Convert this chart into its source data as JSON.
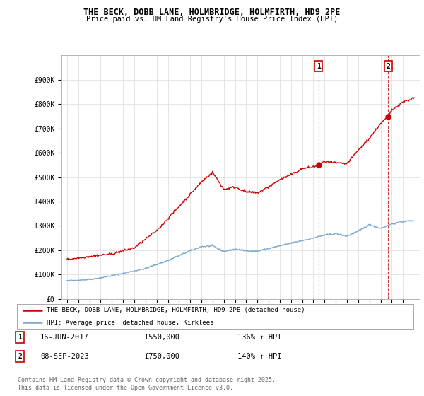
{
  "title": "THE BECK, DOBB LANE, HOLMBRIDGE, HOLMFIRTH, HD9 2PE",
  "subtitle": "Price paid vs. HM Land Registry's House Price Index (HPI)",
  "legend_line1": "THE BECK, DOBB LANE, HOLMBRIDGE, HOLMFIRTH, HD9 2PE (detached house)",
  "legend_line2": "HPI: Average price, detached house, Kirklees",
  "annotation1_label": "1",
  "annotation1_date": "16-JUN-2017",
  "annotation1_price": "£550,000",
  "annotation1_hpi": "136% ↑ HPI",
  "annotation2_label": "2",
  "annotation2_date": "08-SEP-2023",
  "annotation2_price": "£750,000",
  "annotation2_hpi": "140% ↑ HPI",
  "footer": "Contains HM Land Registry data © Crown copyright and database right 2025.\nThis data is licensed under the Open Government Licence v3.0.",
  "red_color": "#cc0000",
  "blue_color": "#7aa8cc",
  "background_color": "#ffffff",
  "grid_color": "#e0e0e0",
  "ylim": [
    0,
    1000000
  ],
  "yticks": [
    0,
    100000,
    200000,
    300000,
    400000,
    500000,
    600000,
    700000,
    800000,
    900000
  ],
  "ytick_labels": [
    "£0",
    "£100K",
    "£200K",
    "£300K",
    "£400K",
    "£500K",
    "£600K",
    "£700K",
    "£800K",
    "£900K"
  ],
  "sale1_x": 2017.46,
  "sale1_y": 550000,
  "sale2_x": 2023.69,
  "sale2_y": 750000,
  "xmin": 1994.5,
  "xmax": 2026.5
}
